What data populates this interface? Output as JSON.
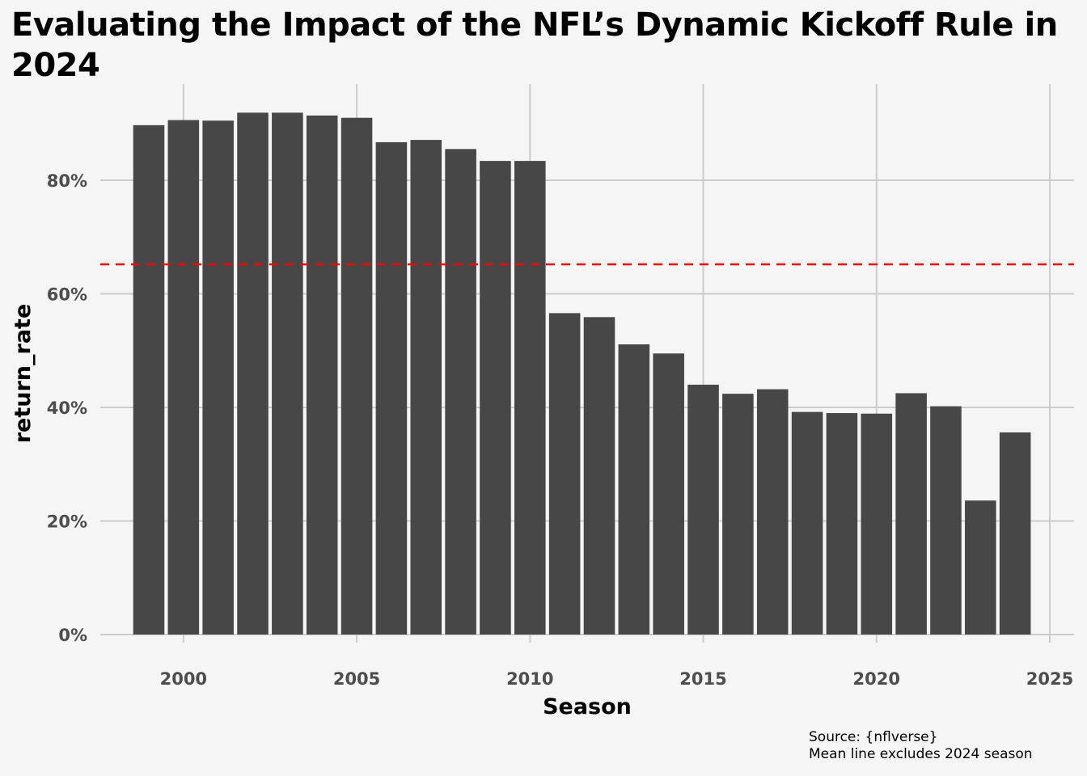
{
  "chart_data": {
    "type": "bar",
    "title": "Evaluating the Impact of the NFL’s Dynamic Kickoff Rule in 2024",
    "xlabel": "Season",
    "ylabel": "return_rate",
    "x": [
      1999,
      2000,
      2001,
      2002,
      2003,
      2004,
      2005,
      2006,
      2007,
      2008,
      2009,
      2010,
      2011,
      2012,
      2013,
      2014,
      2015,
      2016,
      2017,
      2018,
      2019,
      2020,
      2021,
      2022,
      2023,
      2024
    ],
    "values": [
      0.897,
      0.906,
      0.905,
      0.919,
      0.919,
      0.914,
      0.91,
      0.867,
      0.871,
      0.855,
      0.834,
      0.834,
      0.566,
      0.559,
      0.511,
      0.495,
      0.44,
      0.424,
      0.432,
      0.392,
      0.39,
      0.389,
      0.425,
      0.402,
      0.236,
      0.356
    ],
    "bar_color": "#474747",
    "xlim": [
      1997.6,
      2025.7
    ],
    "ylim": [
      0,
      1.0
    ],
    "xticks": [
      2000,
      2005,
      2010,
      2015,
      2020,
      2025
    ],
    "xtick_labels": [
      "2000",
      "2005",
      "2010",
      "2015",
      "2020",
      "2025"
    ],
    "yticks": [
      0,
      0.2,
      0.4,
      0.6,
      0.8
    ],
    "ytick_labels": [
      "0%",
      "20%",
      "40%",
      "60%",
      "80%"
    ],
    "grid": true,
    "reference_line": {
      "value": 0.652,
      "style": "dashed",
      "color": "#ff0000"
    },
    "caption": {
      "source": "Source: {nflverse}",
      "note": "Mean line excludes 2024 season"
    }
  }
}
